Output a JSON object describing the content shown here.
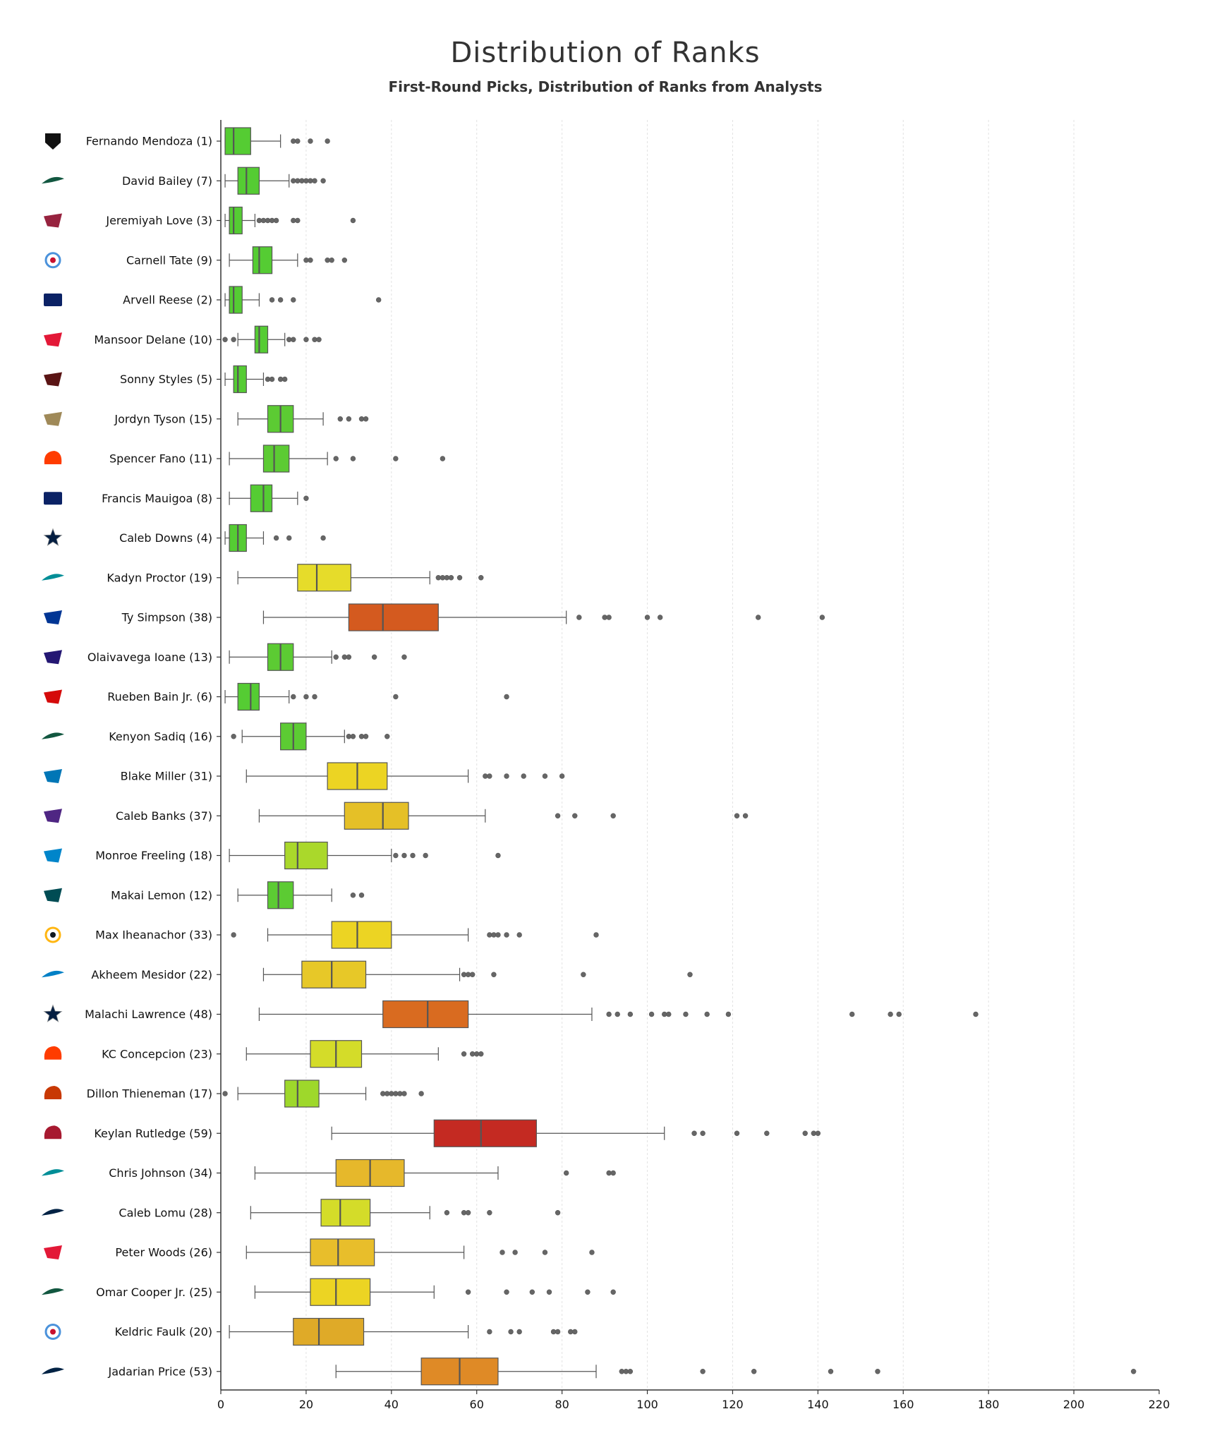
{
  "chart_data": {
    "type": "boxplot",
    "title": "Distribution of Ranks",
    "subtitle": "First-Round Picks, Distribution of Ranks from Analysts",
    "xlabel": "",
    "ylabel": "",
    "xlim": [
      0,
      220
    ],
    "xticks": [
      "0",
      "20",
      "40",
      "60",
      "80",
      "100",
      "120",
      "140",
      "160",
      "180",
      "200",
      "220"
    ],
    "grid": "vertical",
    "series": [
      {
        "label": "Fernando Mendoza (1)",
        "team": "raiders-logo-icon",
        "color": "#55cc33",
        "whislo": 1,
        "q1": 1,
        "median": 3,
        "q3": 7,
        "whishi": 14,
        "fliers": [
          17,
          18,
          21,
          25
        ]
      },
      {
        "label": "David Bailey (7)",
        "team": "jets-logo-icon",
        "color": "#55cc33",
        "whislo": 1,
        "q1": 4,
        "median": 6,
        "q3": 9,
        "whishi": 16,
        "fliers": [
          17,
          18,
          19,
          20,
          21,
          22,
          24
        ]
      },
      {
        "label": "Jeremiyah Love (3)",
        "team": "cardinals-logo-icon",
        "color": "#55cc33",
        "whislo": 1,
        "q1": 2,
        "median": 3,
        "q3": 5,
        "whishi": 8,
        "fliers": [
          9,
          10,
          11,
          12,
          13,
          17,
          18,
          31
        ]
      },
      {
        "label": "Carnell Tate (9)",
        "team": "titans-logo-icon",
        "color": "#55cc33",
        "whislo": 2,
        "q1": 7.5,
        "median": 9,
        "q3": 12,
        "whishi": 18,
        "fliers": [
          20,
          21,
          25,
          26,
          29
        ]
      },
      {
        "label": "Arvell Reese (2)",
        "team": "giants-logo-icon",
        "color": "#55cc33",
        "whislo": 1,
        "q1": 2,
        "median": 3,
        "q3": 5,
        "whishi": 9,
        "fliers": [
          12,
          14,
          17,
          37
        ]
      },
      {
        "label": "Mansoor Delane (10)",
        "team": "chiefs-logo-icon",
        "color": "#55cc33",
        "whislo": 4,
        "q1": 8,
        "median": 9,
        "q3": 11,
        "whishi": 15,
        "fliers": [
          1,
          3,
          16,
          17,
          20,
          22,
          23
        ]
      },
      {
        "label": "Sonny Styles (5)",
        "team": "commanders-logo-icon",
        "color": "#55cc33",
        "whislo": 1,
        "q1": 3,
        "median": 4,
        "q3": 6,
        "whishi": 10,
        "fliers": [
          11,
          12,
          14,
          15
        ]
      },
      {
        "label": "Jordyn Tyson (15)",
        "team": "saints-logo-icon",
        "color": "#5ccb33",
        "whislo": 4,
        "q1": 11,
        "median": 14,
        "q3": 17,
        "whishi": 24,
        "fliers": [
          28,
          30,
          33,
          34
        ]
      },
      {
        "label": "Spencer Fano (11)",
        "team": "browns-logo-icon",
        "color": "#5ccb33",
        "whislo": 2,
        "q1": 10,
        "median": 12.5,
        "q3": 16,
        "whishi": 25,
        "fliers": [
          27,
          31,
          41,
          52
        ]
      },
      {
        "label": "Francis Mauigoa (8)",
        "team": "giants-logo-icon",
        "color": "#55cc33",
        "whislo": 2,
        "q1": 7,
        "median": 10,
        "q3": 12,
        "whishi": 18,
        "fliers": [
          20
        ]
      },
      {
        "label": "Caleb Downs (4)",
        "team": "cowboys-logo-icon",
        "color": "#55cc33",
        "whislo": 1,
        "q1": 2,
        "median": 4,
        "q3": 6,
        "whishi": 10,
        "fliers": [
          13,
          16,
          24
        ]
      },
      {
        "label": "Kadyn Proctor (19)",
        "team": "dolphins-logo-icon",
        "color": "#e6dc2a",
        "whislo": 4,
        "q1": 18,
        "median": 22.5,
        "q3": 30.5,
        "whishi": 49,
        "fliers": [
          51,
          52,
          53,
          54,
          56,
          61
        ]
      },
      {
        "label": "Ty Simpson (38)",
        "team": "rams-logo-icon",
        "color": "#d45a1f",
        "whislo": 10,
        "q1": 30,
        "median": 38,
        "q3": 51,
        "whishi": 81,
        "fliers": [
          84,
          90,
          91,
          100,
          103,
          126,
          141
        ]
      },
      {
        "label": "Olaivavega Ioane (13)",
        "team": "ravens-logo-icon",
        "color": "#5ccb33",
        "whislo": 2,
        "q1": 11,
        "median": 14,
        "q3": 17,
        "whishi": 26,
        "fliers": [
          27,
          29,
          30,
          36,
          43
        ]
      },
      {
        "label": "Rueben Bain Jr. (6)",
        "team": "buccaneers-logo-icon",
        "color": "#55cc33",
        "whislo": 1,
        "q1": 4,
        "median": 7,
        "q3": 9,
        "whishi": 16,
        "fliers": [
          17,
          20,
          22,
          41,
          67
        ]
      },
      {
        "label": "Kenyon Sadiq (16)",
        "team": "jets-logo-icon",
        "color": "#5ccb33",
        "whislo": 5,
        "q1": 14,
        "median": 17,
        "q3": 20,
        "whishi": 29,
        "fliers": [
          3,
          30,
          31,
          33,
          34,
          39
        ]
      },
      {
        "label": "Blake Miller (31)",
        "team": "lions-logo-icon",
        "color": "#ecd423",
        "whislo": 6,
        "q1": 25,
        "median": 32,
        "q3": 39,
        "whishi": 58,
        "fliers": [
          62,
          63,
          67,
          71,
          76,
          80
        ]
      },
      {
        "label": "Caleb Banks (37)",
        "team": "vikings-logo-icon",
        "color": "#e5c027",
        "whislo": 9,
        "q1": 29,
        "median": 38,
        "q3": 44,
        "whishi": 62,
        "fliers": [
          79,
          83,
          92,
          121,
          123
        ]
      },
      {
        "label": "Monroe Freeling (18)",
        "team": "panthers-logo-icon",
        "color": "#aad82b",
        "whislo": 2,
        "q1": 15,
        "median": 18,
        "q3": 25,
        "whishi": 40,
        "fliers": [
          41,
          43,
          45,
          48,
          65
        ]
      },
      {
        "label": "Makai Lemon (12)",
        "team": "eagles-logo-icon",
        "color": "#5ccb33",
        "whislo": 4,
        "q1": 11,
        "median": 13.5,
        "q3": 17,
        "whishi": 26,
        "fliers": [
          31,
          33
        ]
      },
      {
        "label": "Max Iheanachor (33)",
        "team": "steelers-logo-icon",
        "color": "#ecd423",
        "whislo": 11,
        "q1": 26,
        "median": 32,
        "q3": 40,
        "whishi": 58,
        "fliers": [
          3,
          63,
          64,
          65,
          67,
          70,
          88
        ]
      },
      {
        "label": "Akheem Mesidor (22)",
        "team": "chargers-logo-icon",
        "color": "#e7c828",
        "whislo": 10,
        "q1": 19,
        "median": 26,
        "q3": 34,
        "whishi": 56,
        "fliers": [
          57,
          58,
          59,
          64,
          85,
          110
        ]
      },
      {
        "label": "Malachi Lawrence (48)",
        "team": "cowboys-logo-icon",
        "color": "#d96b20",
        "whislo": 9,
        "q1": 38,
        "median": 48.5,
        "q3": 58,
        "whishi": 87,
        "fliers": [
          91,
          93,
          96,
          101,
          104,
          105,
          109,
          114,
          119,
          148,
          157,
          159,
          177
        ]
      },
      {
        "label": "KC Concepcion (23)",
        "team": "browns-logo-icon",
        "color": "#d4dc29",
        "whislo": 6,
        "q1": 21,
        "median": 27,
        "q3": 33,
        "whishi": 51,
        "fliers": [
          57,
          59,
          60,
          61
        ]
      },
      {
        "label": "Dillon Thieneman (17)",
        "team": "bears-logo-icon",
        "color": "#9ed82b",
        "whislo": 4,
        "q1": 15,
        "median": 18,
        "q3": 23,
        "whishi": 34,
        "fliers": [
          1,
          38,
          39,
          40,
          41,
          42,
          43,
          47
        ]
      },
      {
        "label": "Keylan Rutledge (59)",
        "team": "texans-logo-icon",
        "color": "#c42a22",
        "whislo": 26,
        "q1": 50,
        "median": 61,
        "q3": 74,
        "whishi": 104,
        "fliers": [
          111,
          113,
          121,
          128,
          137,
          139,
          140
        ]
      },
      {
        "label": "Chris Johnson (34)",
        "team": "dolphins-logo-icon",
        "color": "#e6b82b",
        "whislo": 8,
        "q1": 27,
        "median": 35,
        "q3": 43,
        "whishi": 65,
        "fliers": [
          81,
          91,
          92
        ]
      },
      {
        "label": "Caleb Lomu (28)",
        "team": "patriots-logo-icon",
        "color": "#d4dc29",
        "whislo": 7,
        "q1": 23.5,
        "median": 28,
        "q3": 35,
        "whishi": 49,
        "fliers": [
          53,
          57,
          58,
          63,
          79
        ]
      },
      {
        "label": "Peter Woods (26)",
        "team": "chiefs-logo-icon",
        "color": "#e8be2b",
        "whislo": 6,
        "q1": 21,
        "median": 27.5,
        "q3": 36,
        "whishi": 57,
        "fliers": [
          66,
          69,
          76,
          87
        ]
      },
      {
        "label": "Omar Cooper Jr. (25)",
        "team": "jets-logo-icon",
        "color": "#ecd423",
        "whislo": 8,
        "q1": 21,
        "median": 27,
        "q3": 35,
        "whishi": 50,
        "fliers": [
          58,
          67,
          73,
          77,
          86,
          92
        ]
      },
      {
        "label": "Keldric Faulk (20)",
        "team": "titans-logo-icon",
        "color": "#dfaa28",
        "whislo": 2,
        "q1": 17,
        "median": 23,
        "q3": 33.5,
        "whishi": 58,
        "fliers": [
          63,
          68,
          70,
          78,
          79,
          82,
          83
        ]
      },
      {
        "label": "Jadarian Price (53)",
        "team": "seahawks-logo-icon",
        "color": "#df8a26",
        "whislo": 27,
        "q1": 47,
        "median": 56,
        "q3": 65,
        "whishi": 88,
        "fliers": [
          94,
          95,
          96,
          113,
          125,
          143,
          154,
          214
        ]
      }
    ]
  },
  "team_colors": {
    "raiders-logo-icon": "#111111",
    "jets-logo-icon": "#125740",
    "cardinals-logo-icon": "#97233f",
    "titans-logo-icon": "#4b92db",
    "giants-logo-icon": "#0b2265",
    "chiefs-logo-icon": "#e31837",
    "commanders-logo-icon": "#5a1414",
    "saints-logo-icon": "#9f8958",
    "browns-logo-icon": "#ff3c00",
    "cowboys-logo-icon": "#041e42",
    "dolphins-logo-icon": "#008e97",
    "rams-logo-icon": "#003594",
    "ravens-logo-icon": "#241773",
    "buccaneers-logo-icon": "#d50a0a",
    "lions-logo-icon": "#0076b6",
    "vikings-logo-icon": "#4f2683",
    "panthers-logo-icon": "#0085ca",
    "eagles-logo-icon": "#004c54",
    "steelers-logo-icon": "#ffb612",
    "chargers-logo-icon": "#0080c6",
    "bears-logo-icon": "#c83803",
    "texans-logo-icon": "#a71930",
    "patriots-logo-icon": "#002244",
    "seahawks-logo-icon": "#002244"
  }
}
